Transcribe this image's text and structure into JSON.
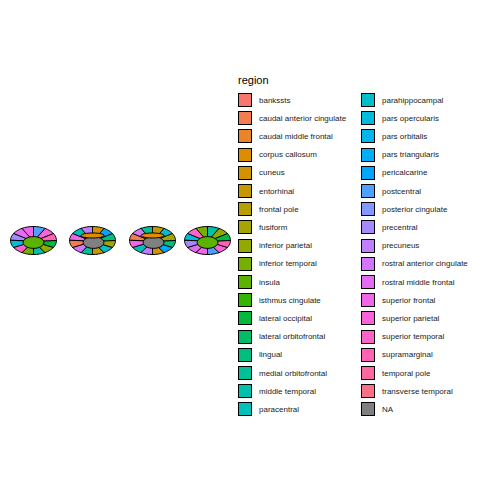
{
  "chart_data": {
    "type": "map",
    "legend_title": "region",
    "regions": [
      {
        "name": "bankssts",
        "color": "#F8766D"
      },
      {
        "name": "caudal anterior cingulate",
        "color": "#F17D51"
      },
      {
        "name": "caudal middle frontal",
        "color": "#E98429"
      },
      {
        "name": "corpus callosum",
        "color": "#DE8C00"
      },
      {
        "name": "cuneus",
        "color": "#D39200"
      },
      {
        "name": "entorhinal",
        "color": "#C59800"
      },
      {
        "name": "frontal pole",
        "color": "#B69E00"
      },
      {
        "name": "fusiform",
        "color": "#A5A400"
      },
      {
        "name": "inferior parietal",
        "color": "#93A900"
      },
      {
        "name": "inferior temporal",
        "color": "#76AF00"
      },
      {
        "name": "insula",
        "color": "#5BB300"
      },
      {
        "name": "isthmus cingulate",
        "color": "#34B600"
      },
      {
        "name": "lateral occipital",
        "color": "#00B93E"
      },
      {
        "name": "lateral orbitofrontal",
        "color": "#00BB67"
      },
      {
        "name": "lingual",
        "color": "#00BD80"
      },
      {
        "name": "medial orbitofrontal",
        "color": "#00C096"
      },
      {
        "name": "middle temporal",
        "color": "#00C0AB"
      },
      {
        "name": "paracentral",
        "color": "#00C0BB"
      },
      {
        "name": "parahippocampal",
        "color": "#00BECB"
      },
      {
        "name": "pars opercularis",
        "color": "#00BBDB"
      },
      {
        "name": "pars orbitalis",
        "color": "#00B6EC"
      },
      {
        "name": "pars triangularis",
        "color": "#00AFF6"
      },
      {
        "name": "pericalcarine",
        "color": "#00A7FF"
      },
      {
        "name": "postcentral",
        "color": "#4FA1FF"
      },
      {
        "name": "posterior cingulate",
        "color": "#8496FF"
      },
      {
        "name": "precentral",
        "color": "#A58AFF"
      },
      {
        "name": "precuneus",
        "color": "#BF7FFF"
      },
      {
        "name": "rostral anterior cingulate",
        "color": "#D375FE"
      },
      {
        "name": "rostral middle frontal",
        "color": "#E46CF3"
      },
      {
        "name": "superior frontal",
        "color": "#F166E8"
      },
      {
        "name": "superior parietal",
        "color": "#FA62DA"
      },
      {
        "name": "superior temporal",
        "color": "#FE63C6"
      },
      {
        "name": "supramarginal",
        "color": "#FF63B3"
      },
      {
        "name": "temporal pole",
        "color": "#FD68A0"
      },
      {
        "name": "transverse temporal",
        "color": "#FC6F87"
      },
      {
        "name": "NA",
        "color": "#808080"
      }
    ]
  }
}
